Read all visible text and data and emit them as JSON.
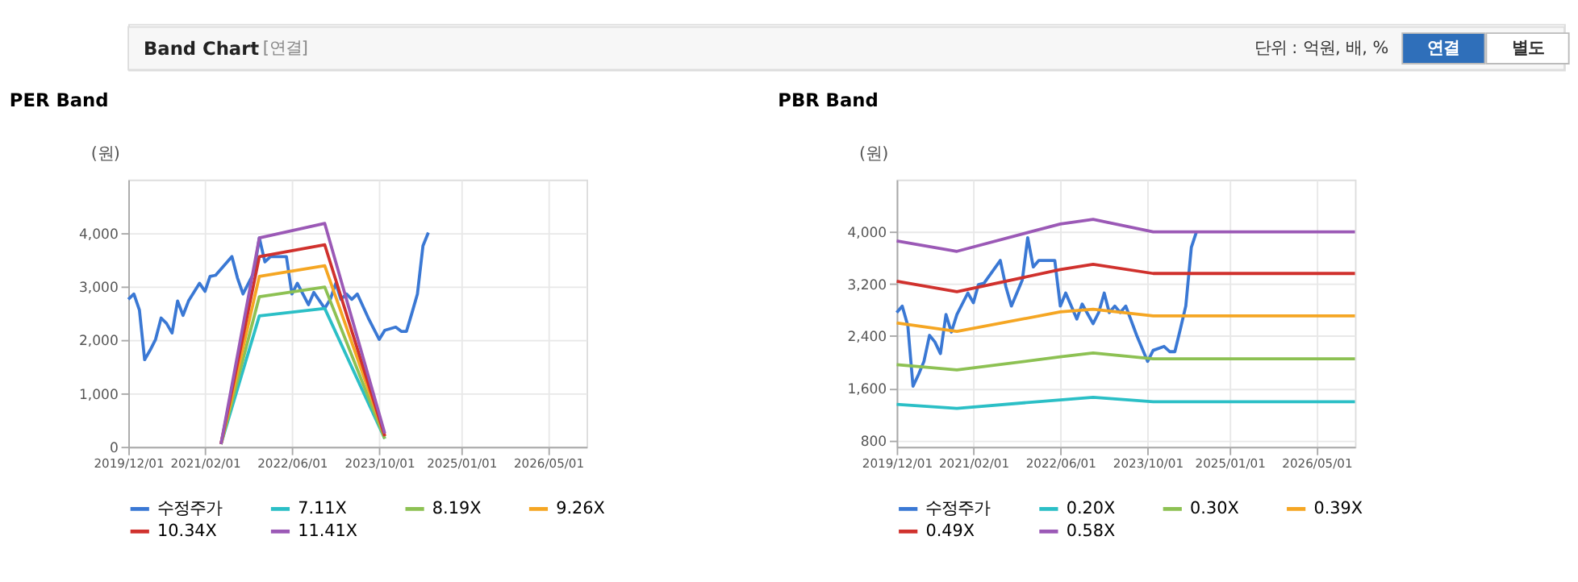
{
  "chart_data": [
    {
      "type": "other",
      "title": "Band Chart",
      "annotations": [
        "[연결]",
        "단위 : 억원, 배, %",
        "연결",
        "별도"
      ]
    },
    {
      "type": "line",
      "title": "PER Band",
      "ylabel": "(원)",
      "legend": "bottom",
      "grid": true,
      "line_style": "solid",
      "xlim": [
        "2019-12-01",
        "2026-12-01"
      ],
      "ylim": [
        0,
        5000
      ],
      "yticks": [
        0,
        {
          "value": 1000,
          "label": "1,000"
        },
        {
          "value": 2000,
          "label": "2,000"
        },
        {
          "value": 3000,
          "label": "3,000"
        },
        {
          "value": 4000,
          "label": "4,000"
        }
      ],
      "xticks": [
        {
          "value": "2019-12-01",
          "label": "2019/12/01"
        },
        {
          "value": "2021-02-01",
          "label": "2021/02/01"
        },
        {
          "value": "2022-06-01",
          "label": "2022/06/01"
        },
        {
          "value": "2023-10-01",
          "label": "2023/10/01"
        },
        {
          "value": "2025-01-01",
          "label": "2025/01/01"
        },
        {
          "value": "2026-05-01",
          "label": "2026/05/01"
        }
      ],
      "series": [
        {
          "name": "수정주가",
          "color": "#3a78d4",
          "x": [
            "2019-12-01",
            "2020-01-01",
            "2020-02-01",
            "2020-03-01",
            "2020-04-01",
            "2020-05-01",
            "2020-06-01",
            "2020-07-01",
            "2020-08-01",
            "2020-09-01",
            "2020-10-01",
            "2020-11-01",
            "2021-01-01",
            "2021-02-01",
            "2021-03-01",
            "2021-04-01",
            "2021-07-01",
            "2021-08-01",
            "2021-09-01",
            "2021-11-01",
            "2021-12-01",
            "2022-01-01",
            "2022-02-01",
            "2022-05-01",
            "2022-06-01",
            "2022-07-01",
            "2022-09-01",
            "2022-10-01",
            "2022-12-01",
            "2023-01-01",
            "2023-02-01",
            "2023-03-01",
            "2023-04-01",
            "2023-05-01",
            "2023-06-01",
            "2023-08-01",
            "2023-10-01",
            "2023-11-01",
            "2024-01-01",
            "2024-02-01",
            "2024-03-01",
            "2024-04-01",
            "2024-05-01",
            "2024-06-01",
            "2024-07-01"
          ],
          "values": [
            2760,
            2860,
            2560,
            1630,
            1810,
            2010,
            2410,
            2310,
            2130,
            2730,
            2460,
            2730,
            3060,
            2910,
            3190,
            3210,
            3560,
            3160,
            2860,
            3260,
            3910,
            3460,
            3560,
            3560,
            2860,
            3060,
            2660,
            2890,
            2590,
            2760,
            3060,
            2760,
            2860,
            2760,
            2860,
            2410,
            2010,
            2180,
            2240,
            2160,
            2160,
            2510,
            2860,
            3760,
            4010
          ]
        },
        {
          "name": "7.11X",
          "color": "#2bbfc6",
          "x": [
            "2021-05-01",
            "2021-12-01",
            "2022-12-01",
            "2023-11-01"
          ],
          "values": [
            50,
            2450,
            2590,
            150
          ]
        },
        {
          "name": "8.19X",
          "color": "#8dc153",
          "x": [
            "2021-05-01",
            "2021-12-01",
            "2022-12-01",
            "2023-11-01"
          ],
          "values": [
            50,
            2810,
            2990,
            150
          ]
        },
        {
          "name": "9.26X",
          "color": "#f5a623",
          "x": [
            "2021-05-01",
            "2021-12-01",
            "2022-12-01",
            "2023-11-01"
          ],
          "values": [
            50,
            3190,
            3390,
            200
          ]
        },
        {
          "name": "10.34X",
          "color": "#d0312d",
          "x": [
            "2021-05-01",
            "2021-12-01",
            "2022-12-01",
            "2023-11-01"
          ],
          "values": [
            50,
            3560,
            3780,
            200
          ]
        },
        {
          "name": "11.41X",
          "color": "#9b59b6",
          "x": [
            "2021-05-01",
            "2021-12-01",
            "2022-12-01",
            "2023-11-01"
          ],
          "values": [
            50,
            3910,
            4180,
            250
          ]
        }
      ]
    },
    {
      "type": "line",
      "title": "PBR Band",
      "ylabel": "(원)",
      "legend": "bottom",
      "grid": true,
      "line_style": "solid",
      "xlim": [
        "2019-12-01",
        "2026-12-01"
      ],
      "ylim": [
        700,
        4800
      ],
      "yticks": [
        800,
        {
          "value": 1600,
          "label": "1,600"
        },
        {
          "value": 2400,
          "label": "2,400"
        },
        {
          "value": 3200,
          "label": "3,200"
        },
        {
          "value": 4000,
          "label": "4,000"
        }
      ],
      "xticks": [
        {
          "value": "2019-12-01",
          "label": "2019/12/01"
        },
        {
          "value": "2021-02-01",
          "label": "2021/02/01"
        },
        {
          "value": "2022-06-01",
          "label": "2022/06/01"
        },
        {
          "value": "2023-10-01",
          "label": "2023/10/01"
        },
        {
          "value": "2025-01-01",
          "label": "2025/01/01"
        },
        {
          "value": "2026-05-01",
          "label": "2026/05/01"
        }
      ],
      "series": [
        {
          "name": "수정주가",
          "color": "#3a78d4",
          "x": [
            "2019-12-01",
            "2020-01-01",
            "2020-02-01",
            "2020-03-01",
            "2020-04-01",
            "2020-05-01",
            "2020-06-01",
            "2020-07-01",
            "2020-08-01",
            "2020-09-01",
            "2020-10-01",
            "2020-11-01",
            "2021-01-01",
            "2021-02-01",
            "2021-03-01",
            "2021-04-01",
            "2021-07-01",
            "2021-08-01",
            "2021-09-01",
            "2021-11-01",
            "2021-12-01",
            "2022-01-01",
            "2022-02-01",
            "2022-05-01",
            "2022-06-01",
            "2022-07-01",
            "2022-09-01",
            "2022-10-01",
            "2022-12-01",
            "2023-01-01",
            "2023-02-01",
            "2023-03-01",
            "2023-04-01",
            "2023-05-01",
            "2023-06-01",
            "2023-08-01",
            "2023-10-01",
            "2023-11-01",
            "2024-01-01",
            "2024-02-01",
            "2024-03-01",
            "2024-04-01",
            "2024-05-01",
            "2024-06-01",
            "2024-07-01"
          ],
          "values": [
            2760,
            2860,
            2560,
            1630,
            1810,
            2010,
            2410,
            2310,
            2130,
            2730,
            2460,
            2730,
            3060,
            2910,
            3190,
            3210,
            3560,
            3160,
            2860,
            3260,
            3910,
            3460,
            3560,
            3560,
            2860,
            3060,
            2660,
            2890,
            2590,
            2760,
            3060,
            2760,
            2860,
            2760,
            2860,
            2410,
            2010,
            2180,
            2240,
            2160,
            2160,
            2510,
            2860,
            3760,
            4010
          ]
        },
        {
          "name": "0.20X",
          "color": "#2bbfc6",
          "x": [
            "2019-12-01",
            "2020-11-01",
            "2022-06-01",
            "2022-12-01",
            "2023-11-01",
            "2026-12-01"
          ],
          "values": [
            1350,
            1290,
            1420,
            1460,
            1390,
            1390
          ]
        },
        {
          "name": "0.30X",
          "color": "#8dc153",
          "x": [
            "2019-12-01",
            "2020-11-01",
            "2022-06-01",
            "2022-12-01",
            "2023-11-01",
            "2026-12-01"
          ],
          "values": [
            1960,
            1880,
            2080,
            2140,
            2050,
            2050
          ]
        },
        {
          "name": "0.39X",
          "color": "#f5a623",
          "x": [
            "2019-12-01",
            "2020-11-01",
            "2022-06-01",
            "2022-12-01",
            "2023-11-01",
            "2026-12-01"
          ],
          "values": [
            2600,
            2470,
            2770,
            2810,
            2710,
            2710
          ]
        },
        {
          "name": "0.49X",
          "color": "#d0312d",
          "x": [
            "2019-12-01",
            "2020-11-01",
            "2022-06-01",
            "2022-12-01",
            "2023-11-01",
            "2026-12-01"
          ],
          "values": [
            3240,
            3080,
            3420,
            3500,
            3360,
            3360
          ]
        },
        {
          "name": "0.58X",
          "color": "#9b59b6",
          "x": [
            "2019-12-01",
            "2020-11-01",
            "2022-06-01",
            "2022-12-01",
            "2023-11-01",
            "2026-12-01"
          ],
          "values": [
            3860,
            3700,
            4120,
            4190,
            4000,
            4000
          ]
        }
      ]
    }
  ]
}
